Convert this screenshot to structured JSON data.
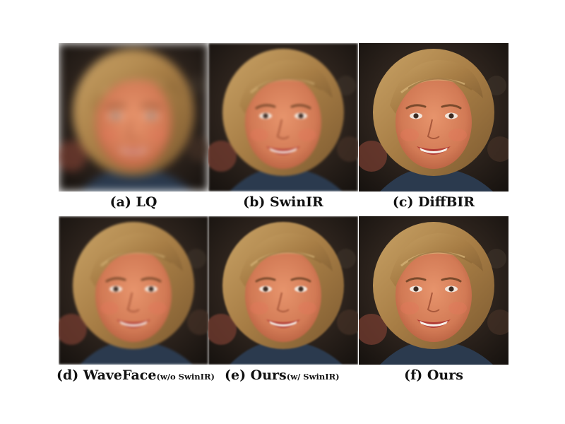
{
  "figure": {
    "panels": [
      {
        "caption_main": "(a) LQ",
        "caption_sub": "",
        "rendering": "heavily blurred"
      },
      {
        "caption_main": "(b) SwinIR",
        "caption_sub": "",
        "rendering": "smooth"
      },
      {
        "caption_main": "(c) DiffBIR",
        "caption_sub": "",
        "rendering": "sharp detailed"
      },
      {
        "caption_main": "(d) WaveFace",
        "caption_sub": "(w/o SwinIR)",
        "rendering": "smooth"
      },
      {
        "caption_main": "(e) Ours",
        "caption_sub": "(w/ SwinIR)",
        "rendering": "detailed"
      },
      {
        "caption_main": "(f) Ours",
        "caption_sub": "",
        "rendering": "sharp detailed"
      }
    ]
  }
}
